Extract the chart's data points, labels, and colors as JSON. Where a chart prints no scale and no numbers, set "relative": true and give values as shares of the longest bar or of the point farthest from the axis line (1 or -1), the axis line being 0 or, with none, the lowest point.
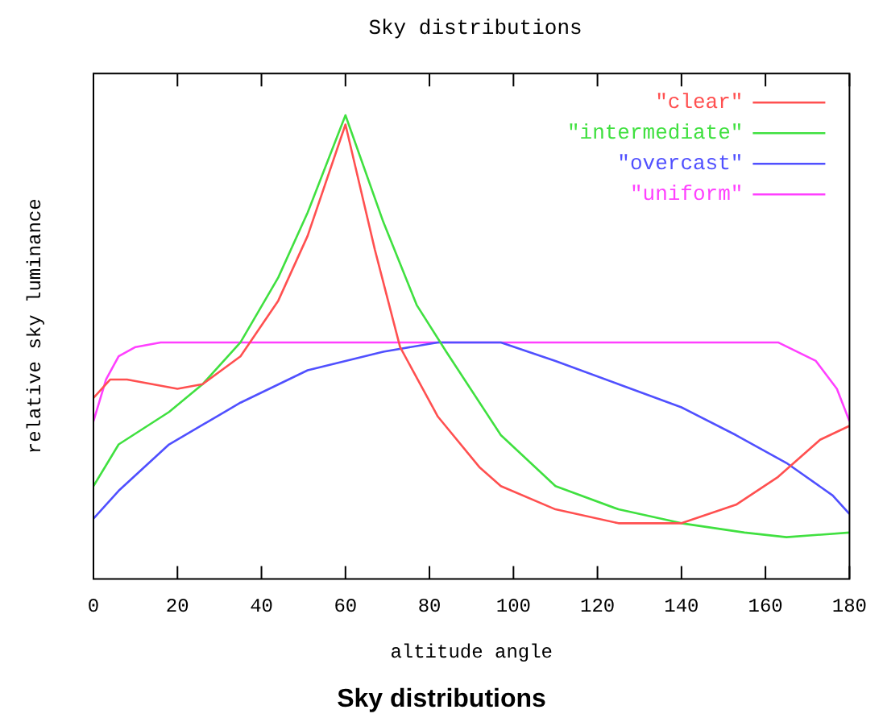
{
  "chart_data": {
    "type": "line",
    "title": "Sky distributions",
    "xlabel": "altitude angle",
    "ylabel": "relative sky luminance",
    "annotations": [
      "Sky distributions"
    ],
    "relative": true,
    "xlim": [
      0,
      180
    ],
    "xticks": [
      0,
      20,
      40,
      60,
      80,
      100,
      120,
      140,
      160,
      180
    ],
    "legend": "top right",
    "grid": false,
    "marker": "none",
    "line_style": "solid",
    "series": [
      {
        "name": "\"clear\"",
        "color": "#ff5050",
        "x": [
          0,
          4,
          8,
          20,
          26,
          35,
          44,
          51,
          60,
          67,
          73,
          82,
          92,
          97,
          110,
          125,
          140,
          153,
          163,
          173,
          180
        ],
        "values": [
          0.39,
          0.43,
          0.43,
          0.41,
          0.42,
          0.48,
          0.6,
          0.74,
          0.98,
          0.71,
          0.5,
          0.35,
          0.24,
          0.2,
          0.15,
          0.12,
          0.12,
          0.16,
          0.22,
          0.3,
          0.33
        ]
      },
      {
        "name": "\"intermediate\"",
        "color": "#40e040",
        "x": [
          0,
          6,
          18,
          26,
          35,
          44,
          51,
          60,
          69,
          77,
          84,
          97,
          110,
          125,
          140,
          155,
          165,
          180
        ],
        "values": [
          0.2,
          0.29,
          0.36,
          0.42,
          0.51,
          0.65,
          0.79,
          1,
          0.77,
          0.59,
          0.49,
          0.31,
          0.2,
          0.15,
          0.12,
          0.1,
          0.09,
          0.1
        ]
      },
      {
        "name": "\"overcast\"",
        "color": "#5050ff",
        "x": [
          0,
          6,
          18,
          35,
          51,
          69,
          82,
          97,
          110,
          125,
          140,
          153,
          165,
          176,
          180
        ],
        "values": [
          0.13,
          0.19,
          0.29,
          0.38,
          0.45,
          0.49,
          0.51,
          0.51,
          0.47,
          0.42,
          0.37,
          0.31,
          0.25,
          0.18,
          0.14
        ]
      },
      {
        "name": "\"uniform\"",
        "color": "#ff40ff",
        "x": [
          0,
          3,
          6,
          10,
          16,
          163,
          172,
          177,
          180
        ],
        "values": [
          0.34,
          0.43,
          0.48,
          0.5,
          0.51,
          0.51,
          0.47,
          0.41,
          0.34
        ]
      }
    ]
  }
}
